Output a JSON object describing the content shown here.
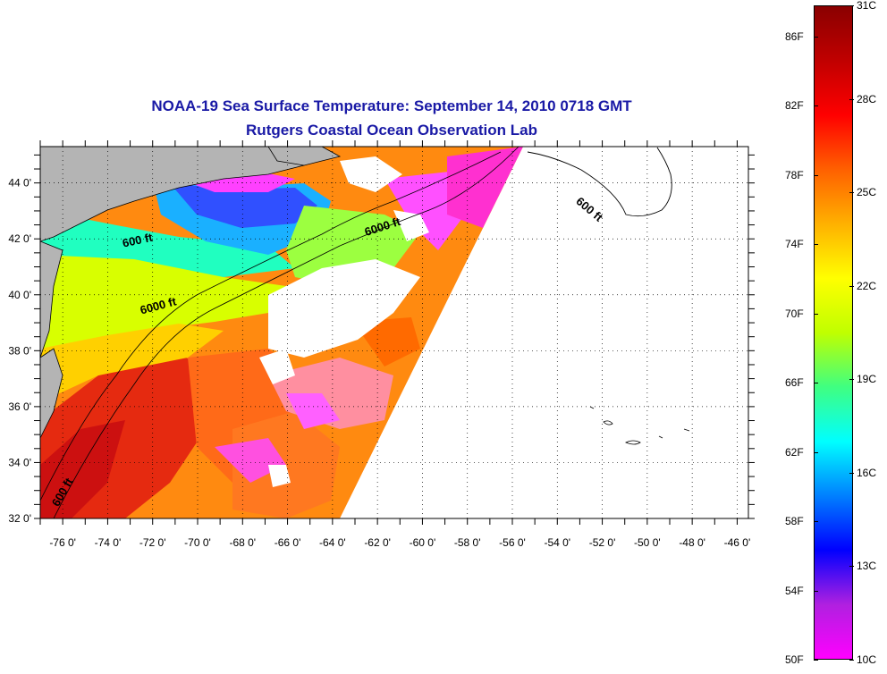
{
  "title": {
    "line1": "NOAA-19 Sea Surface Temperature:  September 14, 2010 0718 GMT",
    "line2": "Rutgers Coastal Ocean Observation Lab"
  },
  "map": {
    "lon_labels": [
      "-76 0'",
      "-74 0'",
      "-72 0'",
      "-70 0'",
      "-68 0'",
      "-66 0'",
      "-64 0'",
      "-62 0'",
      "-60 0'",
      "-58 0'",
      "-56 0'",
      "-54 0'",
      "-52 0'",
      "-50 0'",
      "-48 0'",
      "-46 0'"
    ],
    "lon_values": [
      -76,
      -74,
      -72,
      -70,
      -68,
      -66,
      -64,
      -62,
      -60,
      -58,
      -56,
      -54,
      -52,
      -50,
      -48,
      -46
    ],
    "lat_labels": [
      "44 0'",
      "42 0'",
      "40 0'",
      "38 0'",
      "36 0'",
      "34 0'",
      "32 0'"
    ],
    "lat_values": [
      44,
      42,
      40,
      38,
      36,
      34,
      32
    ],
    "lon_range": [
      -77,
      -45.5
    ],
    "lat_range": [
      32,
      45.3
    ],
    "contour_labels": [
      {
        "text": "600 ft",
        "lon": -73.3,
        "lat": 41.7,
        "angle": -12
      },
      {
        "text": "6000 ft",
        "lon": -62.5,
        "lat": 42.1,
        "angle": -18
      },
      {
        "text": "6000 ft",
        "lon": -72.5,
        "lat": 39.3,
        "angle": -15
      },
      {
        "text": "600 ft",
        "lon": -53.2,
        "lat": 43.3,
        "angle": 40
      },
      {
        "text": "600 ft",
        "lon": -76.2,
        "lat": 32.4,
        "angle": -60
      }
    ],
    "colors": {
      "land": "#b4b4b4",
      "cloud": "#ffffff",
      "grid": "#000000"
    }
  },
  "colorbar": {
    "celsius_labels": [
      "31C",
      "28C",
      "25C",
      "22C",
      "19C",
      "16C",
      "13C",
      "10C"
    ],
    "fahrenheit_labels": [
      "86F",
      "82F",
      "78F",
      "74F",
      "70F",
      "66F",
      "62F",
      "58F",
      "54F",
      "50F"
    ],
    "range_c": [
      10,
      31
    ],
    "colors": [
      "#ff00ff",
      "#b020e0",
      "#0000ff",
      "#0080ff",
      "#00ffff",
      "#40ff80",
      "#c0ff00",
      "#ffff00",
      "#ffb000",
      "#ff6000",
      "#ff0000",
      "#c00000",
      "#8a0000"
    ]
  }
}
